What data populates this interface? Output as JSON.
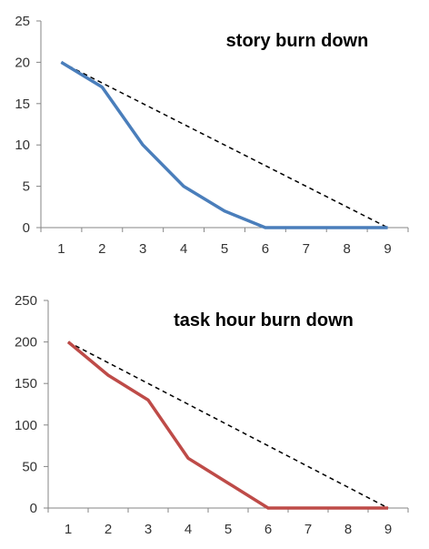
{
  "chart_data": [
    {
      "type": "line",
      "title": "story burn down",
      "xlabel": "",
      "ylabel": "",
      "x": [
        1,
        2,
        3,
        4,
        5,
        6,
        7,
        8,
        9
      ],
      "xlim": [
        0.5,
        9.5
      ],
      "ylim": [
        0,
        25
      ],
      "yticks": [
        0,
        5,
        10,
        15,
        20,
        25
      ],
      "grid": false,
      "legend": "none",
      "series": [
        {
          "values": [
            20,
            17,
            10,
            5,
            2,
            0,
            0,
            0,
            0
          ],
          "color": "#4a7ebb",
          "style": "solid"
        },
        {
          "values": [
            20,
            17.5,
            15,
            12.5,
            10,
            7.5,
            5,
            2.5,
            0
          ],
          "color": "#000000",
          "style": "dashed"
        }
      ]
    },
    {
      "type": "line",
      "title": "task hour burn down",
      "xlabel": "",
      "ylabel": "",
      "x": [
        1,
        2,
        3,
        4,
        5,
        6,
        7,
        8,
        9
      ],
      "xlim": [
        0.5,
        9.5
      ],
      "ylim": [
        0,
        250
      ],
      "yticks": [
        0,
        50,
        100,
        150,
        200,
        250
      ],
      "grid": false,
      "legend": "none",
      "series": [
        {
          "values": [
            200,
            160,
            130,
            60,
            30,
            0,
            0,
            0,
            0
          ],
          "color": "#be4b48",
          "style": "solid"
        },
        {
          "values": [
            200,
            175,
            150,
            125,
            100,
            75,
            50,
            25,
            0
          ],
          "color": "#000000",
          "style": "dashed"
        }
      ]
    }
  ]
}
